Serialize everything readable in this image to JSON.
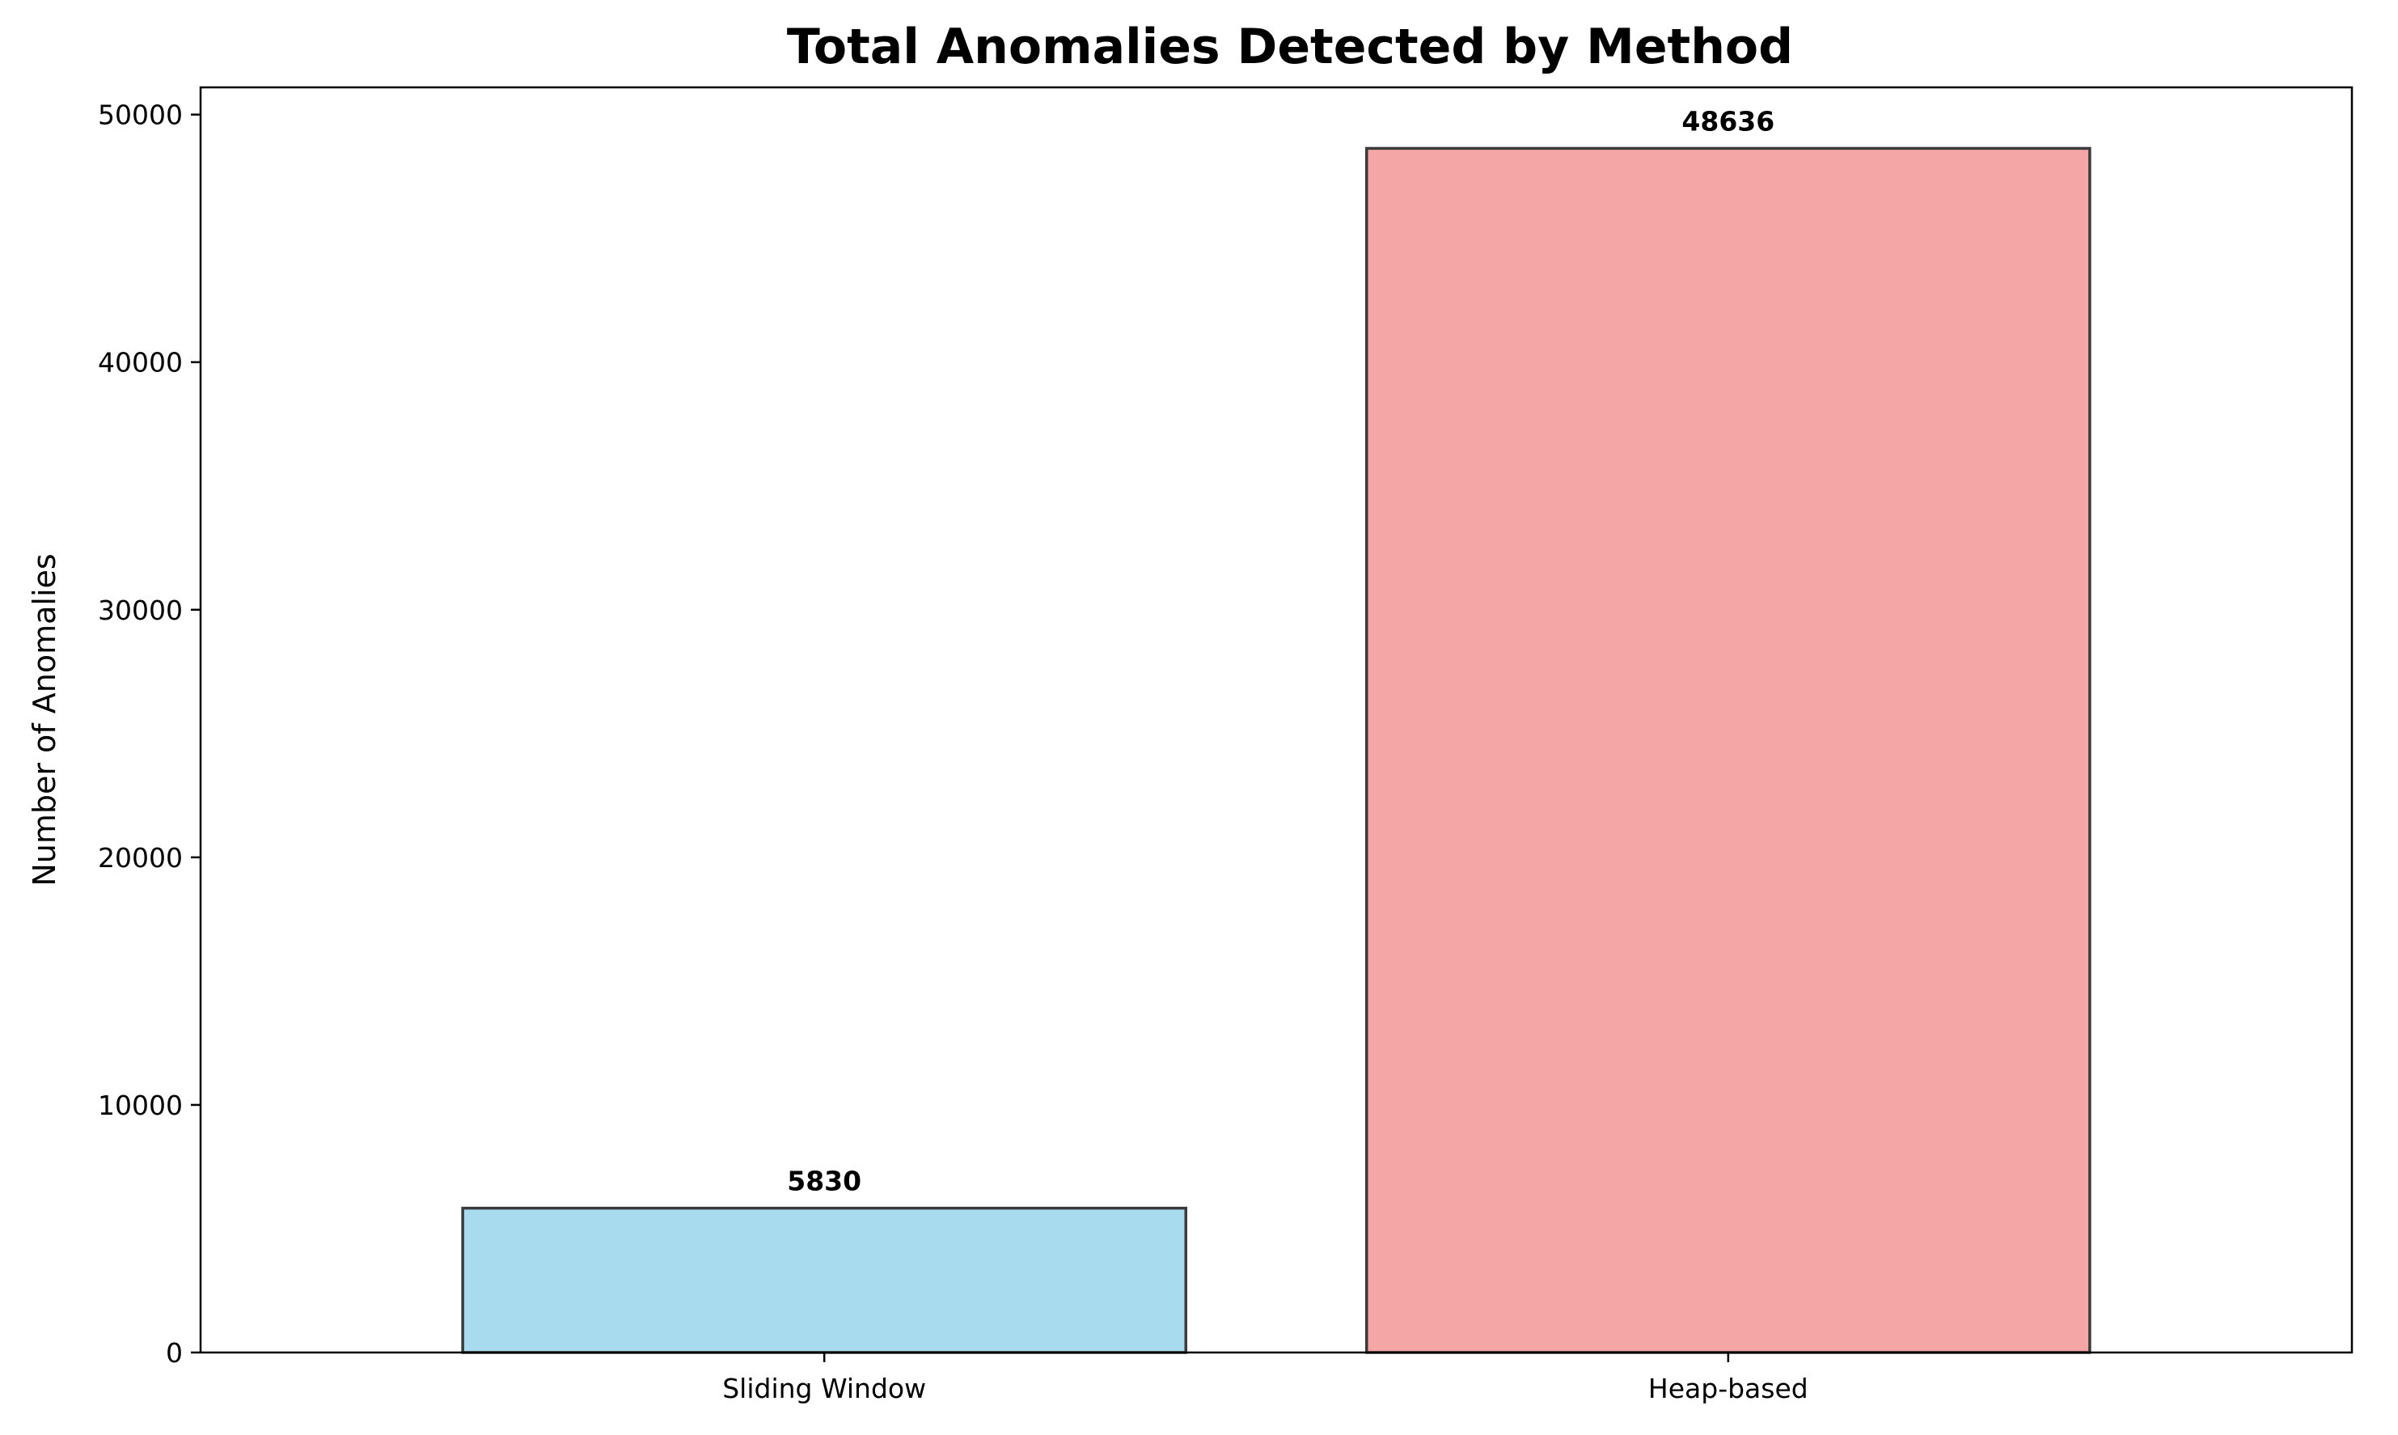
{
  "chart_data": {
    "type": "bar",
    "title": "Total Anomalies Detected by Method",
    "xlabel": "",
    "ylabel": "Number of Anomalies",
    "categories": [
      "Sliding Window",
      "Heap-based"
    ],
    "values": [
      5830,
      48636
    ],
    "data_labels": [
      "5830",
      "48636"
    ],
    "bar_colors": [
      "#a8dbee",
      "#f4a6a6"
    ],
    "bar_edge_color": "#3a3a3a",
    "ylim": [
      0,
      51100
    ],
    "yticks": [
      0,
      10000,
      20000,
      30000,
      40000,
      50000
    ],
    "ytick_labels": [
      "0",
      "10000",
      "20000",
      "30000",
      "40000",
      "50000"
    ],
    "grid": false,
    "legend": "none"
  }
}
